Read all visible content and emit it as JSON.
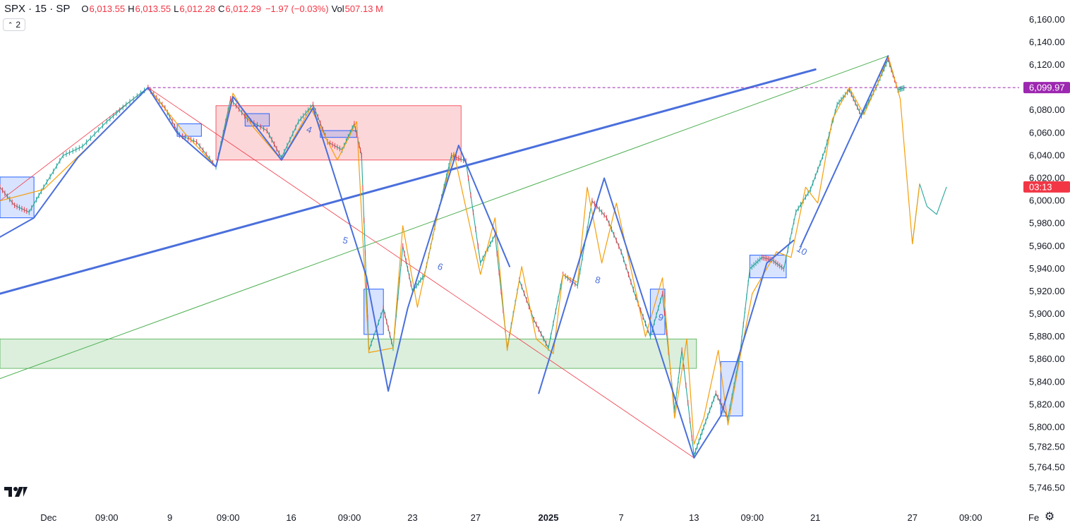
{
  "header": {
    "symbol": "SPX · 15 · SP",
    "open_label": "O",
    "open": "6,013.55",
    "high_label": "H",
    "high": "6,013.55",
    "low_label": "L",
    "low": "6,012.28",
    "close_label": "C",
    "close": "6,012.29",
    "change": "−1.97 (−0.03%)",
    "vol_label": "Vol",
    "volume": "507.13 M",
    "indicator_count": "2"
  },
  "chart_data": {
    "type": "line",
    "y_axis": {
      "min": 5738,
      "max": 6168,
      "ticks": [
        {
          "label": "6,160.00",
          "v": 6160
        },
        {
          "label": "6,140.00",
          "v": 6140
        },
        {
          "label": "6,120.00",
          "v": 6120
        },
        {
          "label": "6,080.00",
          "v": 6080
        },
        {
          "label": "6,060.00",
          "v": 6060
        },
        {
          "label": "6,040.00",
          "v": 6040
        },
        {
          "label": "6,020.00",
          "v": 6020
        },
        {
          "label": "6,000.00",
          "v": 6000
        },
        {
          "label": "5,980.00",
          "v": 5980
        },
        {
          "label": "5,960.00",
          "v": 5960
        },
        {
          "label": "5,940.00",
          "v": 5940
        },
        {
          "label": "5,920.00",
          "v": 5920
        },
        {
          "label": "5,900.00",
          "v": 5900
        },
        {
          "label": "5,880.00",
          "v": 5880
        },
        {
          "label": "5,860.00",
          "v": 5860
        },
        {
          "label": "5,840.00",
          "v": 5840
        },
        {
          "label": "5,820.00",
          "v": 5820
        },
        {
          "label": "5,800.00",
          "v": 5800
        },
        {
          "label": "5,782.50",
          "v": 5782.5
        },
        {
          "label": "5,764.50",
          "v": 5764.5
        },
        {
          "label": "5,746.50",
          "v": 5746.5
        }
      ],
      "price_line": {
        "label": "6,099.97",
        "v": 6099.97,
        "color": "#9c27b0"
      },
      "last_price": {
        "label": "03:13",
        "v": 6012.29,
        "color": "#f23645"
      }
    },
    "x_axis": {
      "min": 0,
      "max": 42,
      "ticks": [
        {
          "label": "Dec",
          "x": 2.0,
          "bold": false
        },
        {
          "label": "09:00",
          "x": 4.4,
          "bold": false
        },
        {
          "label": "9",
          "x": 7.0,
          "bold": false
        },
        {
          "label": "09:00",
          "x": 9.4,
          "bold": false
        },
        {
          "label": "16",
          "x": 12.0,
          "bold": false
        },
        {
          "label": "09:00",
          "x": 14.4,
          "bold": false
        },
        {
          "label": "23",
          "x": 17.0,
          "bold": false
        },
        {
          "label": "27",
          "x": 19.6,
          "bold": false
        },
        {
          "label": "2025",
          "x": 22.6,
          "bold": true
        },
        {
          "label": "7",
          "x": 25.6,
          "bold": false
        },
        {
          "label": "13",
          "x": 28.6,
          "bold": false
        },
        {
          "label": "09:00",
          "x": 31.0,
          "bold": false
        },
        {
          "label": "21",
          "x": 33.6,
          "bold": false
        },
        {
          "label": "27",
          "x": 37.6,
          "bold": false
        },
        {
          "label": "09:00",
          "x": 40.0,
          "bold": false
        },
        {
          "label": "Fe",
          "x": 42.6,
          "bold": false
        }
      ]
    },
    "price_series": [
      [
        0.0,
        6012
      ],
      [
        0.6,
        5996
      ],
      [
        1.2,
        5990
      ],
      [
        1.8,
        6012
      ],
      [
        2.6,
        6040
      ],
      [
        3.4,
        6048
      ],
      [
        4.4,
        6070
      ],
      [
        5.2,
        6085
      ],
      [
        6.1,
        6100
      ],
      [
        6.8,
        6082
      ],
      [
        7.4,
        6058
      ],
      [
        8.1,
        6052
      ],
      [
        8.9,
        6030
      ],
      [
        9.5,
        6090
      ],
      [
        10.2,
        6072
      ],
      [
        11.0,
        6062
      ],
      [
        11.6,
        6038
      ],
      [
        12.3,
        6070
      ],
      [
        12.9,
        6085
      ],
      [
        13.5,
        6052
      ],
      [
        14.1,
        6045
      ],
      [
        14.6,
        6068
      ],
      [
        14.9,
        6040
      ],
      [
        15.2,
        5868
      ],
      [
        15.8,
        5905
      ],
      [
        16.2,
        5870
      ],
      [
        16.6,
        5960
      ],
      [
        17.0,
        5920
      ],
      [
        17.5,
        5935
      ],
      [
        18.0,
        5985
      ],
      [
        18.6,
        6040
      ],
      [
        19.2,
        6035
      ],
      [
        19.8,
        5945
      ],
      [
        20.4,
        5970
      ],
      [
        20.9,
        5870
      ],
      [
        21.4,
        5930
      ],
      [
        22.0,
        5895
      ],
      [
        22.6,
        5870
      ],
      [
        23.2,
        5935
      ],
      [
        23.8,
        5925
      ],
      [
        24.4,
        6000
      ],
      [
        25.0,
        5985
      ],
      [
        25.6,
        5955
      ],
      [
        26.2,
        5915
      ],
      [
        26.8,
        5880
      ],
      [
        27.3,
        5918
      ],
      [
        27.8,
        5815
      ],
      [
        28.1,
        5868
      ],
      [
        28.6,
        5775
      ],
      [
        29.0,
        5800
      ],
      [
        29.5,
        5830
      ],
      [
        30.0,
        5808
      ],
      [
        30.5,
        5866
      ],
      [
        30.9,
        5940
      ],
      [
        31.4,
        5950
      ],
      [
        31.8,
        5948
      ],
      [
        32.3,
        5940
      ],
      [
        32.8,
        5990
      ],
      [
        33.4,
        6010
      ],
      [
        34.0,
        6045
      ],
      [
        34.5,
        6085
      ],
      [
        35.0,
        6098
      ],
      [
        35.5,
        6075
      ],
      [
        36.1,
        6100
      ],
      [
        36.6,
        6125
      ],
      [
        37.0,
        6098
      ],
      [
        37.3,
        6100
      ]
    ],
    "price_series_gap_at": 37.3,
    "price_series_2": [
      [
        37.6,
        5962
      ],
      [
        37.9,
        6015
      ],
      [
        38.2,
        5995
      ],
      [
        38.6,
        5988
      ],
      [
        39.0,
        6012
      ]
    ],
    "zigzag_orange": [
      [
        0.0,
        6000
      ],
      [
        1.8,
        6010
      ],
      [
        3.5,
        6045
      ],
      [
        6.1,
        6100
      ],
      [
        7.6,
        6060
      ],
      [
        8.9,
        6030
      ],
      [
        9.6,
        6095
      ],
      [
        10.4,
        6066
      ],
      [
        11.6,
        6036
      ],
      [
        12.8,
        6082
      ],
      [
        13.9,
        6036
      ],
      [
        14.7,
        6070
      ],
      [
        15.2,
        5866
      ],
      [
        16.2,
        5870
      ],
      [
        16.6,
        5978
      ],
      [
        17.2,
        5906
      ],
      [
        18.0,
        5985
      ],
      [
        18.7,
        6043
      ],
      [
        19.8,
        5935
      ],
      [
        20.4,
        5985
      ],
      [
        20.9,
        5868
      ],
      [
        21.5,
        5942
      ],
      [
        22.1,
        5878
      ],
      [
        22.8,
        5865
      ],
      [
        23.2,
        5935
      ],
      [
        23.8,
        5928
      ],
      [
        24.2,
        6012
      ],
      [
        24.8,
        5945
      ],
      [
        25.4,
        5998
      ],
      [
        26.0,
        5940
      ],
      [
        26.6,
        5880
      ],
      [
        27.3,
        5932
      ],
      [
        27.8,
        5808
      ],
      [
        28.3,
        5878
      ],
      [
        28.6,
        5785
      ],
      [
        29.0,
        5808
      ],
      [
        29.6,
        5868
      ],
      [
        30.0,
        5802
      ],
      [
        30.5,
        5862
      ],
      [
        31.0,
        5918
      ],
      [
        32.0,
        5955
      ],
      [
        32.6,
        5950
      ],
      [
        33.2,
        6012
      ],
      [
        33.7,
        5998
      ],
      [
        34.3,
        6072
      ],
      [
        35.0,
        6100
      ],
      [
        35.6,
        6076
      ],
      [
        36.2,
        6105
      ],
      [
        36.6,
        6128
      ],
      [
        37.1,
        6090
      ],
      [
        37.6,
        5962
      ],
      [
        37.9,
        6015
      ]
    ],
    "zigzag_blue": [
      [
        0.0,
        5968
      ],
      [
        1.4,
        5985
      ],
      [
        3.2,
        6038
      ],
      [
        6.1,
        6100
      ],
      [
        7.3,
        6060
      ],
      [
        8.9,
        6030
      ],
      [
        9.6,
        6092
      ],
      [
        11.6,
        6036
      ],
      [
        12.9,
        6082
      ],
      [
        15.1,
        5933
      ],
      [
        16.0,
        5832
      ],
      [
        16.8,
        5905
      ],
      [
        18.9,
        6049
      ],
      [
        21.0,
        5942
      ]
    ],
    "zigzag_blue_2": [
      [
        22.2,
        5830
      ],
      [
        24.9,
        6020
      ],
      [
        27.0,
        5880
      ],
      [
        28.6,
        5773
      ],
      [
        29.7,
        5810
      ],
      [
        31.6,
        5945
      ],
      [
        32.7,
        5965
      ]
    ],
    "zigzag_blue_3": [
      [
        33.0,
        5960
      ],
      [
        36.6,
        6128
      ]
    ],
    "trendline_blue": [
      [
        0.0,
        5918
      ],
      [
        33.6,
        6116
      ]
    ],
    "trendline_green": [
      [
        0.0,
        5843
      ],
      [
        36.6,
        6128
      ]
    ],
    "trendline_red": [
      [
        6.1,
        6100
      ],
      [
        28.6,
        5773
      ]
    ],
    "trendline_red_2": [
      [
        0.0,
        6000
      ],
      [
        6.1,
        6100
      ]
    ],
    "zones": [
      {
        "x0": 8.9,
        "x1": 19.0,
        "y0": 6036,
        "y1": 6084,
        "kind": "supply"
      },
      {
        "x0": 0.0,
        "x1": 28.7,
        "y0": 5852,
        "y1": 5878,
        "kind": "demand"
      }
    ],
    "boxes": [
      {
        "x0": 0.0,
        "x1": 1.4,
        "y0": 5985,
        "y1": 6021
      },
      {
        "x0": 7.3,
        "x1": 8.3,
        "y0": 6057,
        "y1": 6068
      },
      {
        "x0": 10.1,
        "x1": 11.1,
        "y0": 6066,
        "y1": 6077
      },
      {
        "x0": 13.2,
        "x1": 14.7,
        "y0": 6056,
        "y1": 6062
      },
      {
        "x0": 15.0,
        "x1": 15.8,
        "y0": 5882,
        "y1": 5922
      },
      {
        "x0": 26.8,
        "x1": 27.4,
        "y0": 5882,
        "y1": 5922
      },
      {
        "x0": 29.7,
        "x1": 30.6,
        "y0": 5810,
        "y1": 5858
      },
      {
        "x0": 30.9,
        "x1": 32.4,
        "y0": 5932,
        "y1": 5952
      }
    ],
    "wave_labels": [
      {
        "text": "4",
        "x": 12.6,
        "y": 6061,
        "rot": 20
      },
      {
        "text": "5",
        "x": 14.1,
        "y": 5963,
        "rot": 15
      },
      {
        "text": "6",
        "x": 18.0,
        "y": 5940,
        "rot": 20
      },
      {
        "text": "8",
        "x": 24.5,
        "y": 5928,
        "rot": 15
      },
      {
        "text": "9",
        "x": 27.1,
        "y": 5895,
        "rot": 15
      },
      {
        "text": "10",
        "x": 32.8,
        "y": 5956,
        "rot": 30
      }
    ]
  }
}
